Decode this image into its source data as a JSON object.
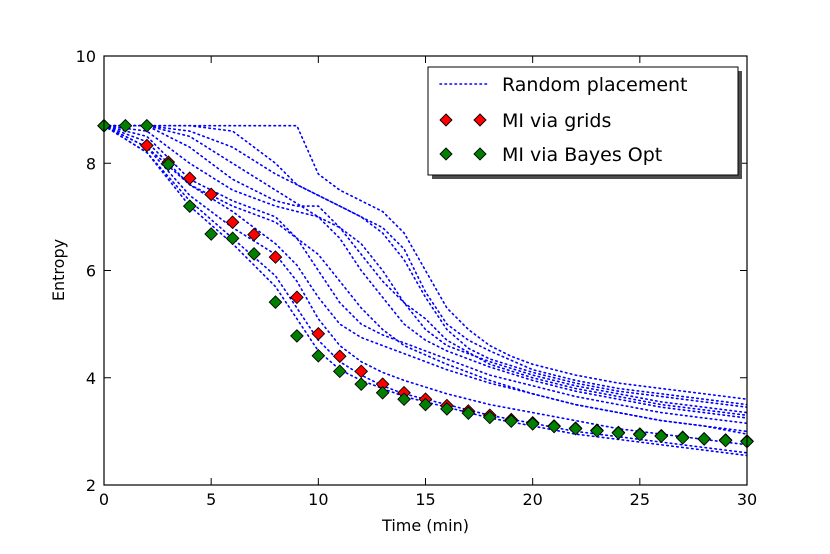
{
  "chart_data": {
    "type": "line",
    "title": "",
    "xlabel": "Time (min)",
    "ylabel": "Entropy",
    "xlim": [
      0,
      30
    ],
    "ylim": [
      2,
      10
    ],
    "xticks": [
      0,
      5,
      10,
      15,
      20,
      25,
      30
    ],
    "yticks": [
      2,
      4,
      6,
      8,
      10
    ],
    "grid": false,
    "legend_position": "top-right",
    "legend": [
      "Random placement",
      "MI via grids",
      "MI via Bayes Opt"
    ],
    "colors": {
      "random": "#0000ff",
      "grids": "#ff0000",
      "bayes": "#008000",
      "edge": "#000000"
    },
    "random_placement": [
      [
        [
          0,
          8.7
        ],
        [
          1,
          8.7
        ],
        [
          2,
          8.7
        ],
        [
          3,
          8.7
        ],
        [
          4,
          8.7
        ],
        [
          5,
          8.7
        ],
        [
          6,
          8.7
        ],
        [
          7,
          8.7
        ],
        [
          8,
          8.7
        ],
        [
          9,
          8.7
        ],
        [
          10,
          7.8
        ],
        [
          11,
          7.5
        ],
        [
          12,
          7.3
        ],
        [
          13,
          7.1
        ],
        [
          14,
          6.7
        ],
        [
          15,
          6.0
        ],
        [
          16,
          5.3
        ],
        [
          17,
          4.9
        ],
        [
          18,
          4.6
        ],
        [
          19,
          4.4
        ],
        [
          20,
          4.25
        ],
        [
          22,
          4.05
        ],
        [
          24,
          3.9
        ],
        [
          26,
          3.8
        ],
        [
          28,
          3.7
        ],
        [
          30,
          3.6
        ]
      ],
      [
        [
          0,
          8.7
        ],
        [
          2,
          8.7
        ],
        [
          4,
          8.7
        ],
        [
          6,
          8.6
        ],
        [
          8,
          8.0
        ],
        [
          9,
          7.6
        ],
        [
          10,
          7.4
        ],
        [
          11,
          7.2
        ],
        [
          12,
          7.0
        ],
        [
          13,
          6.8
        ],
        [
          14,
          6.4
        ],
        [
          15,
          5.6
        ],
        [
          16,
          5.0
        ],
        [
          17,
          4.7
        ],
        [
          18,
          4.5
        ],
        [
          20,
          4.15
        ],
        [
          22,
          3.95
        ],
        [
          24,
          3.8
        ],
        [
          26,
          3.7
        ],
        [
          28,
          3.6
        ],
        [
          30,
          3.5
        ]
      ],
      [
        [
          0,
          8.7
        ],
        [
          2,
          8.7
        ],
        [
          4,
          8.6
        ],
        [
          6,
          8.3
        ],
        [
          8,
          7.8
        ],
        [
          9,
          7.6
        ],
        [
          10,
          7.4
        ],
        [
          11,
          7.2
        ],
        [
          12,
          7.0
        ],
        [
          13,
          6.7
        ],
        [
          14,
          6.2
        ],
        [
          15,
          5.5
        ],
        [
          16,
          4.9
        ],
        [
          17,
          4.55
        ],
        [
          18,
          4.35
        ],
        [
          20,
          4.1
        ],
        [
          22,
          3.9
        ],
        [
          24,
          3.75
        ],
        [
          26,
          3.65
        ],
        [
          28,
          3.55
        ],
        [
          30,
          3.45
        ]
      ],
      [
        [
          0,
          8.7
        ],
        [
          2,
          8.7
        ],
        [
          4,
          8.5
        ],
        [
          6,
          8.0
        ],
        [
          8,
          7.5
        ],
        [
          10,
          7.0
        ],
        [
          11,
          6.8
        ],
        [
          12,
          6.5
        ],
        [
          13,
          6.0
        ],
        [
          14,
          5.4
        ],
        [
          15,
          4.9
        ],
        [
          16,
          4.6
        ],
        [
          18,
          4.3
        ],
        [
          20,
          4.05
        ],
        [
          22,
          3.85
        ],
        [
          24,
          3.7
        ],
        [
          26,
          3.55
        ],
        [
          28,
          3.45
        ],
        [
          30,
          3.35
        ]
      ],
      [
        [
          0,
          8.7
        ],
        [
          2,
          8.7
        ],
        [
          4,
          8.3
        ],
        [
          6,
          7.7
        ],
        [
          8,
          7.3
        ],
        [
          9,
          7.2
        ],
        [
          10,
          7.2
        ],
        [
          11,
          6.8
        ],
        [
          12,
          6.3
        ],
        [
          13,
          5.8
        ],
        [
          14,
          5.4
        ],
        [
          15,
          5.1
        ],
        [
          16,
          4.7
        ],
        [
          18,
          4.25
        ],
        [
          20,
          4.0
        ],
        [
          22,
          3.8
        ],
        [
          24,
          3.65
        ],
        [
          26,
          3.5
        ],
        [
          28,
          3.4
        ],
        [
          30,
          3.3
        ]
      ],
      [
        [
          0,
          8.7
        ],
        [
          2,
          8.6
        ],
        [
          4,
          8.0
        ],
        [
          6,
          7.5
        ],
        [
          8,
          7.2
        ],
        [
          10,
          7.0
        ],
        [
          11,
          6.6
        ],
        [
          12,
          6.0
        ],
        [
          13,
          5.5
        ],
        [
          14,
          5.0
        ],
        [
          15,
          4.7
        ],
        [
          16,
          4.5
        ],
        [
          18,
          4.2
        ],
        [
          20,
          3.95
        ],
        [
          22,
          3.75
        ],
        [
          24,
          3.6
        ],
        [
          26,
          3.45
        ],
        [
          28,
          3.35
        ],
        [
          30,
          3.25
        ]
      ],
      [
        [
          0,
          8.7
        ],
        [
          2,
          8.5
        ],
        [
          4,
          7.7
        ],
        [
          6,
          7.3
        ],
        [
          8,
          7.0
        ],
        [
          9,
          6.6
        ],
        [
          10,
          6.0
        ],
        [
          11,
          5.4
        ],
        [
          12,
          5.0
        ],
        [
          13,
          4.8
        ],
        [
          14,
          4.65
        ],
        [
          16,
          4.35
        ],
        [
          18,
          4.05
        ],
        [
          20,
          3.85
        ],
        [
          22,
          3.65
        ],
        [
          24,
          3.5
        ],
        [
          26,
          3.35
        ],
        [
          28,
          3.25
        ],
        [
          30,
          3.15
        ]
      ],
      [
        [
          0,
          8.7
        ],
        [
          2,
          8.4
        ],
        [
          4,
          7.6
        ],
        [
          6,
          7.1
        ],
        [
          8,
          6.5
        ],
        [
          9,
          6.1
        ],
        [
          10,
          5.5
        ],
        [
          11,
          5.0
        ],
        [
          12,
          4.75
        ],
        [
          13,
          4.6
        ],
        [
          14,
          4.45
        ],
        [
          16,
          4.15
        ],
        [
          18,
          3.9
        ],
        [
          20,
          3.7
        ],
        [
          22,
          3.5
        ],
        [
          24,
          3.35
        ],
        [
          26,
          3.2
        ],
        [
          28,
          3.1
        ],
        [
          30,
          3.0
        ]
      ],
      [
        [
          0,
          8.7
        ],
        [
          2,
          8.3
        ],
        [
          4,
          7.4
        ],
        [
          6,
          6.8
        ],
        [
          8,
          6.3
        ],
        [
          9,
          5.8
        ],
        [
          10,
          5.1
        ],
        [
          11,
          4.6
        ],
        [
          12,
          4.3
        ],
        [
          13,
          4.1
        ],
        [
          14,
          3.95
        ],
        [
          16,
          3.7
        ],
        [
          18,
          3.5
        ],
        [
          20,
          3.35
        ],
        [
          22,
          3.2
        ],
        [
          24,
          3.05
        ],
        [
          26,
          2.95
        ],
        [
          28,
          2.85
        ],
        [
          30,
          2.75
        ]
      ],
      [
        [
          0,
          8.7
        ],
        [
          2,
          8.2
        ],
        [
          4,
          7.3
        ],
        [
          6,
          6.6
        ],
        [
          8,
          5.9
        ],
        [
          9,
          5.3
        ],
        [
          10,
          4.7
        ],
        [
          11,
          4.3
        ],
        [
          12,
          4.05
        ],
        [
          13,
          3.85
        ],
        [
          14,
          3.7
        ],
        [
          16,
          3.5
        ],
        [
          18,
          3.3
        ],
        [
          20,
          3.15
        ],
        [
          22,
          3.0
        ],
        [
          24,
          2.9
        ],
        [
          26,
          2.8
        ],
        [
          28,
          2.7
        ],
        [
          30,
          2.6
        ]
      ],
      [
        [
          0,
          8.7
        ],
        [
          2,
          8.2
        ],
        [
          4,
          7.2
        ],
        [
          6,
          6.5
        ],
        [
          8,
          5.7
        ],
        [
          9,
          5.1
        ],
        [
          10,
          4.5
        ],
        [
          11,
          4.15
        ],
        [
          12,
          3.95
        ],
        [
          13,
          3.8
        ],
        [
          14,
          3.65
        ],
        [
          16,
          3.45
        ],
        [
          18,
          3.25
        ],
        [
          20,
          3.1
        ],
        [
          22,
          2.95
        ],
        [
          24,
          2.85
        ],
        [
          26,
          2.75
        ],
        [
          28,
          2.65
        ],
        [
          30,
          2.55
        ]
      ],
      [
        [
          0,
          8.7
        ],
        [
          2,
          8.3
        ],
        [
          4,
          7.6
        ],
        [
          6,
          7.2
        ],
        [
          8,
          6.9
        ],
        [
          10,
          6.3
        ],
        [
          11,
          5.8
        ],
        [
          12,
          5.3
        ],
        [
          13,
          4.9
        ],
        [
          14,
          4.6
        ],
        [
          16,
          4.25
        ],
        [
          18,
          3.95
        ],
        [
          20,
          3.7
        ],
        [
          22,
          3.5
        ],
        [
          24,
          3.35
        ],
        [
          26,
          3.2
        ],
        [
          28,
          3.1
        ],
        [
          30,
          2.95
        ]
      ]
    ],
    "mi_via_grids": [
      [
        0,
        8.7
      ],
      [
        2,
        8.33
      ],
      [
        3,
        8.02
      ],
      [
        4,
        7.72
      ],
      [
        5,
        7.42
      ],
      [
        6,
        6.9
      ],
      [
        7,
        6.67
      ],
      [
        8,
        6.25
      ],
      [
        9,
        5.5
      ],
      [
        10,
        4.82
      ],
      [
        11,
        4.4
      ],
      [
        12,
        4.12
      ],
      [
        13,
        3.88
      ],
      [
        14,
        3.72
      ],
      [
        15,
        3.6
      ],
      [
        16,
        3.48
      ],
      [
        17,
        3.38
      ],
      [
        18,
        3.3
      ],
      [
        19,
        3.22
      ],
      [
        20,
        3.16
      ],
      [
        21,
        3.1
      ],
      [
        22,
        3.06
      ],
      [
        23,
        3.02
      ],
      [
        24,
        2.98
      ],
      [
        25,
        2.95
      ],
      [
        26,
        2.92
      ],
      [
        27,
        2.89
      ],
      [
        28,
        2.86
      ],
      [
        29,
        2.84
      ],
      [
        30,
        2.82
      ]
    ],
    "mi_via_bayes_opt": [
      [
        0,
        8.7
      ],
      [
        1,
        8.7
      ],
      [
        2,
        8.7
      ],
      [
        3,
        7.98
      ],
      [
        4,
        7.2
      ],
      [
        5,
        6.68
      ],
      [
        6,
        6.6
      ],
      [
        7,
        6.31
      ],
      [
        8,
        5.41
      ],
      [
        9,
        4.78
      ],
      [
        10,
        4.41
      ],
      [
        11,
        4.12
      ],
      [
        12,
        3.88
      ],
      [
        13,
        3.72
      ],
      [
        14,
        3.6
      ],
      [
        15,
        3.5
      ],
      [
        16,
        3.42
      ],
      [
        17,
        3.34
      ],
      [
        18,
        3.26
      ],
      [
        19,
        3.19
      ],
      [
        20,
        3.14
      ],
      [
        21,
        3.09
      ],
      [
        22,
        3.05
      ],
      [
        23,
        3.01
      ],
      [
        24,
        2.97
      ],
      [
        25,
        2.94
      ],
      [
        26,
        2.91
      ],
      [
        27,
        2.88
      ],
      [
        28,
        2.86
      ],
      [
        29,
        2.83
      ],
      [
        30,
        2.81
      ]
    ]
  }
}
